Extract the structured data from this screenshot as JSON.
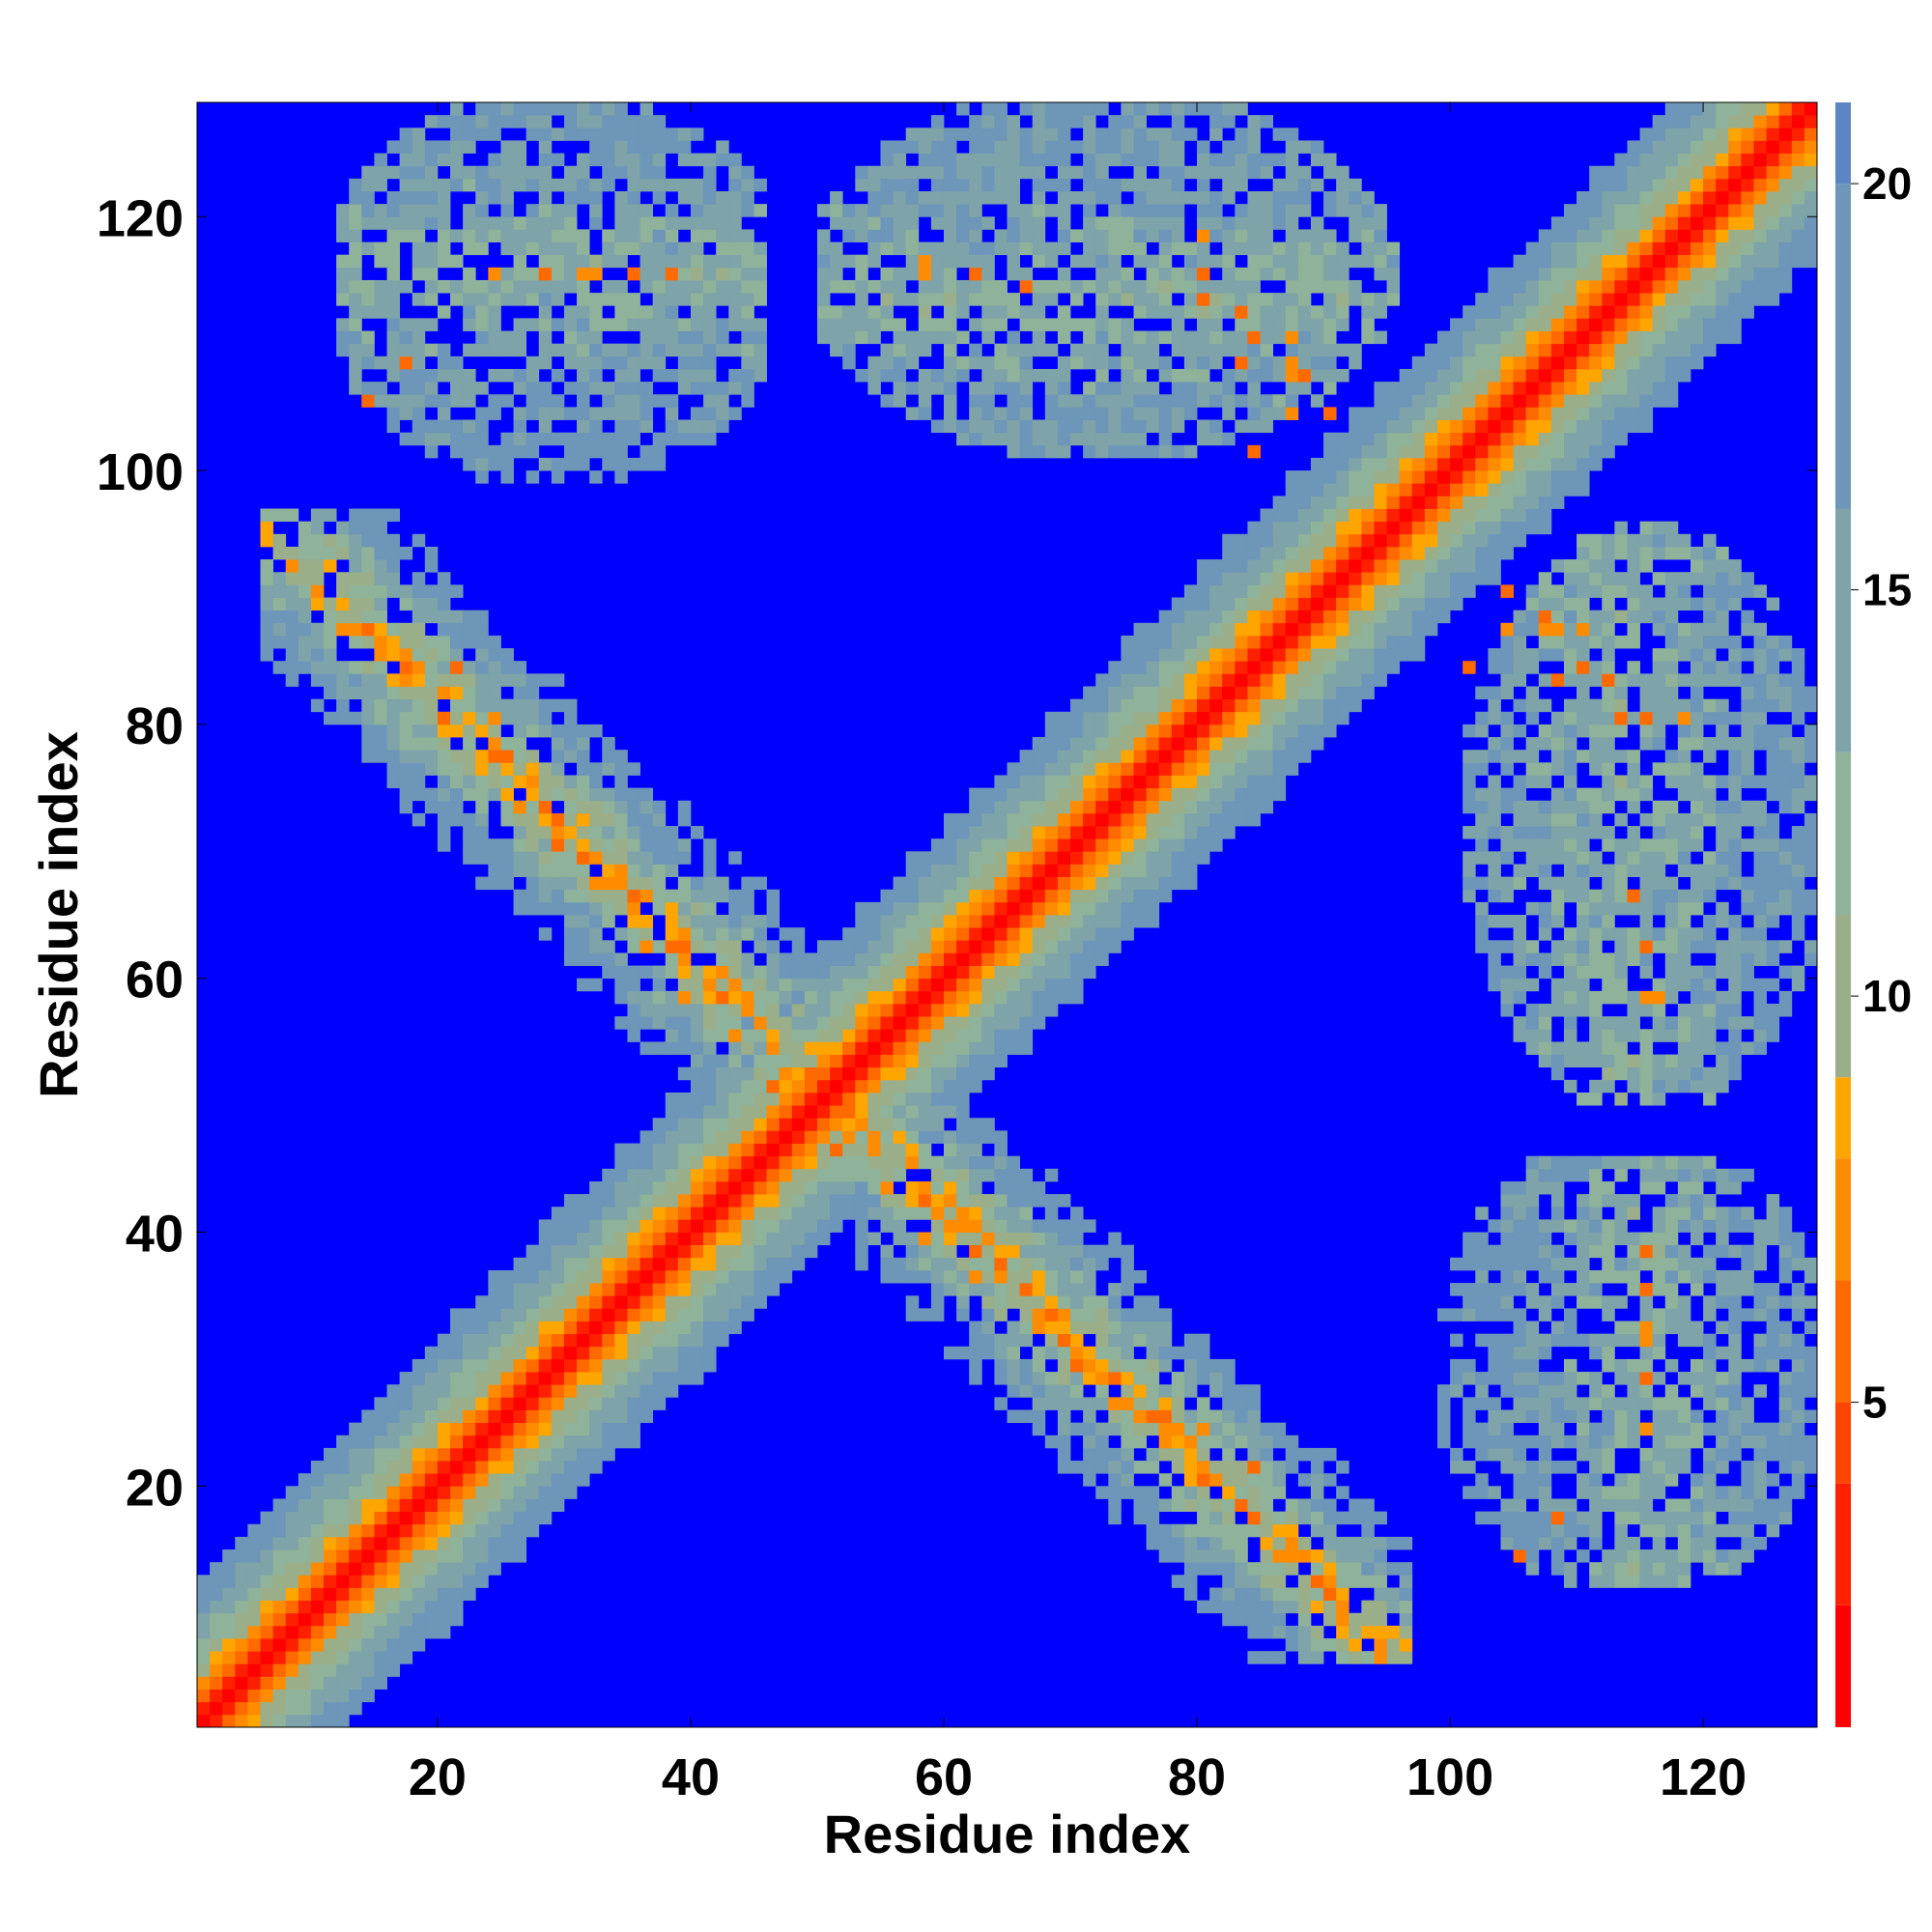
{
  "chart_data": {
    "type": "heatmap",
    "title": "",
    "xlabel": "Residue index",
    "ylabel": "Residue index",
    "xlim": [
      1,
      129
    ],
    "ylim": [
      1,
      129
    ],
    "x_ticks": [
      20,
      40,
      60,
      80,
      100,
      120
    ],
    "y_ticks": [
      20,
      40,
      60,
      80,
      100,
      120
    ],
    "colorbar": {
      "range": [
        1,
        21
      ],
      "ticks": [
        5,
        10,
        15,
        20
      ],
      "colors": [
        "#ff0000",
        "#ff2000",
        "#ff4400",
        "#ff6a00",
        "#ff8c00",
        "#ffa500",
        "#9aae8a",
        "#8fb29a",
        "#7ea3a9",
        "#6d96b8",
        "#5b86c4",
        "#0000ff"
      ],
      "bounds": [
        1,
        2.5,
        4,
        5,
        6.5,
        8,
        9,
        11,
        13,
        16,
        20,
        21
      ]
    },
    "n_residues": 128,
    "description_bands": {
      "diagonal": "distance grows with |i-j|; 0-4 red, 4-8 orange, 8-12 green-grey, 12-20 blue-grey, >20 blue",
      "antiparallel_hairpin": "residues ~14-50 contact ~52-88 along i+j≈101",
      "strand_pairing": "residues ~100-126 contact ~10-45 (blocks at top-left / bottom-right)",
      "far_block": "residues ~60-95 contact ~100-128 (blocks at top-middle / right-middle)"
    },
    "contact_sets": {
      "hairpin_core": [
        [
          14,
          87
        ],
        [
          17,
          84
        ],
        [
          20,
          80
        ],
        [
          21,
          84
        ],
        [
          24,
          80
        ],
        [
          25,
          77
        ],
        [
          26,
          73
        ],
        [
          28,
          73
        ],
        [
          29,
          70
        ],
        [
          31,
          69
        ],
        [
          32,
          67
        ],
        [
          35,
          66
        ],
        [
          36,
          62
        ],
        [
          38,
          62
        ],
        [
          39,
          58
        ],
        [
          42,
          58
        ],
        [
          43,
          55
        ],
        [
          46,
          51
        ],
        [
          47,
          52
        ],
        [
          49,
          50
        ]
      ],
      "upper_left_core": [
        [
          14,
          105
        ],
        [
          17,
          108
        ],
        [
          24,
          115
        ],
        [
          28,
          115
        ],
        [
          32,
          115
        ],
        [
          35,
          115
        ],
        [
          38,
          115
        ]
      ],
      "right_core": [
        [
          104,
          87
        ],
        [
          107,
          87
        ],
        [
          108,
          87
        ],
        [
          110,
          87
        ],
        [
          112,
          83
        ],
        [
          113,
          80
        ],
        [
          115,
          80
        ],
        [
          118,
          80
        ],
        [
          115,
          62
        ],
        [
          115,
          58
        ]
      ],
      "bottom_right_core": [
        [
          105,
          14
        ],
        [
          108,
          17
        ],
        [
          115,
          38
        ],
        [
          115,
          35
        ],
        [
          115,
          31
        ],
        [
          115,
          28
        ],
        [
          115,
          24
        ]
      ],
      "top_middle_core": [
        [
          58,
          116
        ],
        [
          62,
          115
        ],
        [
          66,
          114
        ],
        [
          80,
          115
        ],
        [
          80,
          113
        ],
        [
          83,
          108
        ],
        [
          84,
          110
        ],
        [
          88,
          107
        ],
        [
          90,
          104
        ],
        [
          84,
          101
        ]
      ]
    }
  }
}
